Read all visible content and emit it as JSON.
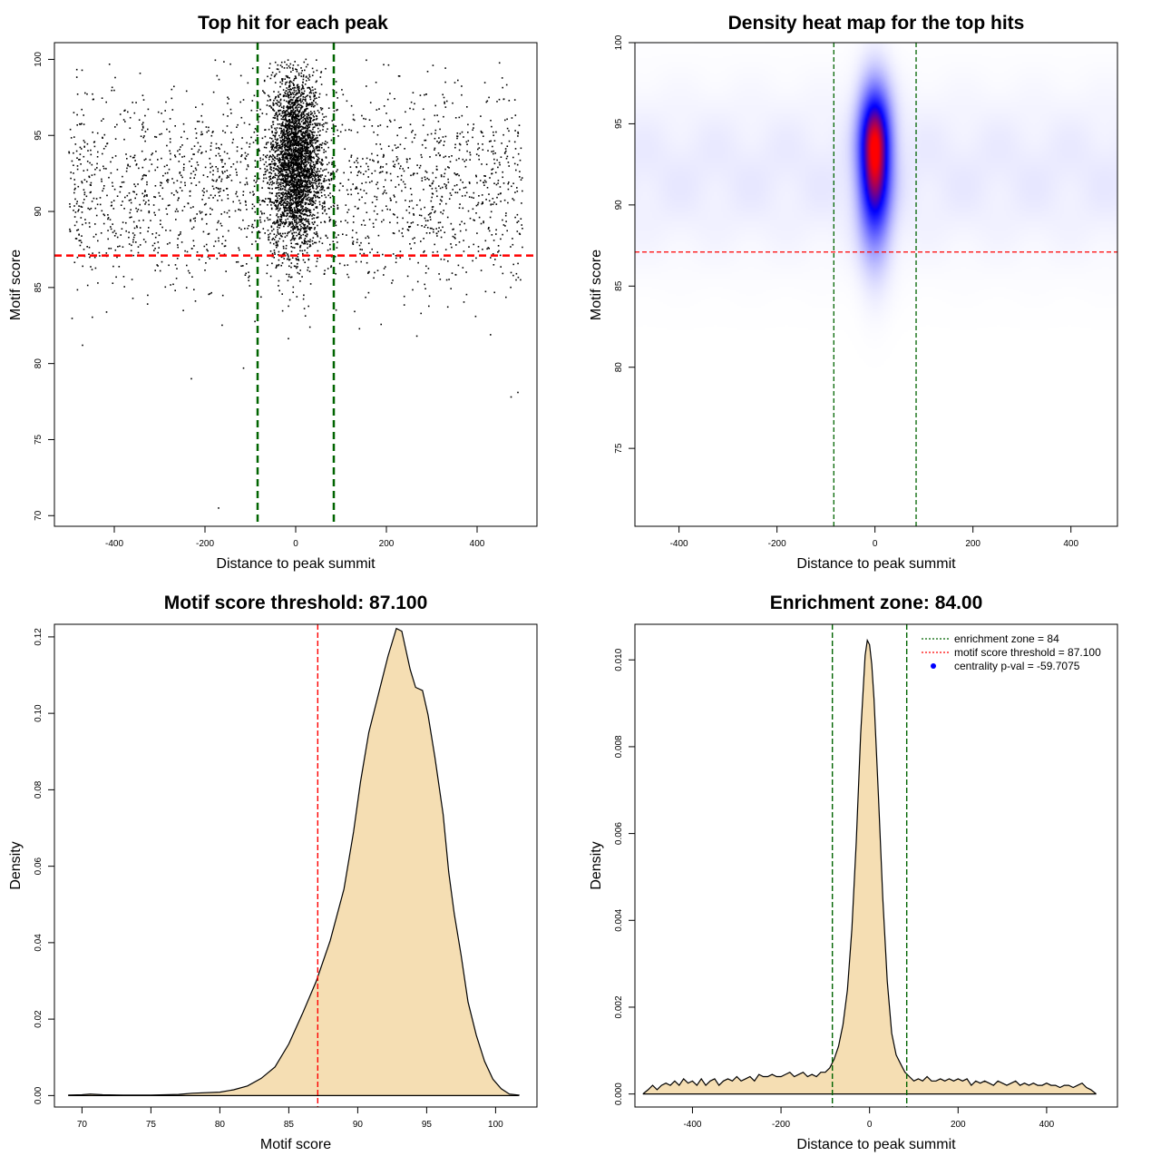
{
  "panels": {
    "scatter": {
      "title": "Top hit for each peak",
      "xlabel": "Distance to peak summit",
      "ylabel": "Motif score"
    },
    "heatmap": {
      "title": "Density heat map for the top hits",
      "xlabel": "Distance to peak summit",
      "ylabel": "Motif score"
    },
    "score_density": {
      "title": "Motif score threshold: 87.100",
      "xlabel": "Motif score",
      "ylabel": "Density"
    },
    "distance_density": {
      "title": "Enrichment zone: 84.00",
      "xlabel": "Distance to peak summit",
      "ylabel": "Density"
    }
  },
  "legend": {
    "items": [
      {
        "label": "enrichment zone = 84",
        "color": "#006400",
        "style": "dotted-line"
      },
      {
        "label": "motif score threshold = 87.100",
        "color": "#ff0000",
        "style": "dotted-line"
      },
      {
        "label": "centrality p-val = -59.7075",
        "color": "#0000ff",
        "style": "point"
      }
    ],
    "position": "top-right"
  },
  "chart_data": [
    {
      "id": "scatter",
      "type": "scatter",
      "title": "Top hit for each peak",
      "xlabel": "Distance to peak summit",
      "ylabel": "Motif score",
      "xlim": [
        -532,
        532
      ],
      "ylim": [
        69.3,
        101.1
      ],
      "xticks": [
        -400,
        -200,
        0,
        200,
        400
      ],
      "yticks": [
        70,
        75,
        80,
        85,
        90,
        95,
        100
      ],
      "point_color": "#000000",
      "vlines": [
        -84,
        84
      ],
      "vline_color": "#006400",
      "hline": 87.1,
      "hline_color": "#ff0000",
      "distribution": {
        "n_total": 5200,
        "central_fraction": 0.6,
        "central_sd_distance": 28,
        "central_mean_score": 93.3,
        "central_sd_score": 2.9,
        "background_distance_range": [
          -500,
          500
        ],
        "background_mean_score": 91.5,
        "background_sd_score": 3.3,
        "sparse_low_points": [
          [
            -170,
            70.5
          ],
          [
            -230,
            79
          ],
          [
            -115,
            79.7
          ],
          [
            475,
            77.8
          ],
          [
            490,
            78.1
          ],
          [
            -470,
            81.2
          ]
        ]
      },
      "grid": false
    },
    {
      "id": "heatmap",
      "type": "heatmap",
      "title": "Density heat map for the top hits",
      "xlabel": "Distance to peak summit",
      "ylabel": "Motif score",
      "xlim": [
        -490,
        495
      ],
      "ylim": [
        70.2,
        100.0
      ],
      "xticks": [
        -400,
        -200,
        0,
        200,
        400
      ],
      "yticks": [
        75,
        80,
        85,
        90,
        95,
        100
      ],
      "colormap": [
        "#ffffff",
        "#0000ff",
        "#ff0000"
      ],
      "peak": {
        "x": 0,
        "y": 93.5,
        "sd_x": 22,
        "sd_y": 2.9,
        "max_density": 1.0
      },
      "background_level": 0.06,
      "vlines": [
        -84,
        84
      ],
      "vline_color": "#006400",
      "hline": 87.1,
      "hline_color": "#ff0000",
      "grid": false
    },
    {
      "id": "score_density",
      "type": "area",
      "title": "Motif score threshold: 87.100",
      "xlabel": "Motif score",
      "ylabel": "Density",
      "xlim": [
        68,
        103
      ],
      "ylim": [
        -0.003,
        0.1233
      ],
      "xticks": [
        70,
        75,
        80,
        85,
        90,
        95,
        100
      ],
      "yticks": [
        0,
        0.02,
        0.04,
        0.06,
        0.08,
        0.1,
        0.12
      ],
      "ytick_labels": [
        "0.00",
        "0.02",
        "0.04",
        "0.06",
        "0.08",
        "0.10",
        "0.12"
      ],
      "fill": "#f5deb3",
      "line": "#000000",
      "x": [
        69.0,
        70.0,
        70.6,
        71.5,
        73,
        75,
        77,
        78,
        80,
        81,
        82,
        83,
        84,
        85,
        86,
        87,
        88,
        89,
        89.7,
        90.2,
        90.8,
        91.5,
        92.2,
        92.8,
        93.2,
        93.8,
        94.2,
        94.7,
        95.1,
        95.6,
        96.2,
        96.6,
        97.0,
        97.5,
        98.0,
        98.6,
        99.2,
        99.8,
        100.4,
        101.0,
        101.7
      ],
      "y": [
        0.0001,
        0.0002,
        0.0004,
        0.0002,
        0.0001,
        0.0001,
        0.0003,
        0.0006,
        0.0009,
        0.0015,
        0.0025,
        0.0045,
        0.0075,
        0.0135,
        0.0215,
        0.03,
        0.0405,
        0.054,
        0.069,
        0.082,
        0.095,
        0.105,
        0.115,
        0.1222,
        0.1215,
        0.1115,
        0.1068,
        0.106,
        0.0996,
        0.0885,
        0.0735,
        0.0585,
        0.0476,
        0.0367,
        0.0245,
        0.0158,
        0.009,
        0.0043,
        0.0018,
        0.0004,
        0.0001
      ],
      "vlines": [
        87.1
      ],
      "vline_color": "#ff0000",
      "grid": false
    },
    {
      "id": "distance_density",
      "type": "area",
      "title": "Enrichment zone: 84.00",
      "xlabel": "Distance to peak summit",
      "ylabel": "Density",
      "xlim": [
        -530,
        560
      ],
      "ylim": [
        -0.0003,
        0.01082
      ],
      "xticks": [
        -400,
        -200,
        0,
        200,
        400
      ],
      "yticks": [
        0,
        0.002,
        0.004,
        0.006,
        0.008,
        0.01
      ],
      "ytick_labels": [
        "0.000",
        "0.002",
        "0.004",
        "0.006",
        "0.008",
        "0.010"
      ],
      "fill": "#f5deb3",
      "line": "#000000",
      "x": [
        -512,
        -500,
        -490,
        -480,
        -470,
        -460,
        -450,
        -440,
        -430,
        -420,
        -410,
        -400,
        -390,
        -380,
        -370,
        -360,
        -350,
        -340,
        -330,
        -320,
        -310,
        -300,
        -290,
        -280,
        -270,
        -260,
        -250,
        -240,
        -230,
        -220,
        -210,
        -200,
        -190,
        -180,
        -170,
        -160,
        -150,
        -140,
        -130,
        -120,
        -110,
        -100,
        -90,
        -80,
        -70,
        -60,
        -50,
        -40,
        -30,
        -20,
        -10,
        -5,
        0,
        5,
        10,
        20,
        30,
        40,
        50,
        60,
        70,
        80,
        90,
        100,
        110,
        120,
        130,
        140,
        150,
        160,
        170,
        180,
        190,
        200,
        210,
        220,
        230,
        240,
        250,
        260,
        270,
        280,
        290,
        300,
        310,
        320,
        330,
        340,
        350,
        360,
        370,
        380,
        390,
        400,
        410,
        420,
        430,
        440,
        450,
        460,
        470,
        480,
        490,
        500,
        512
      ],
      "y": [
        0.0,
        0.0001,
        0.0002,
        0.0001,
        0.0002,
        0.00025,
        0.0002,
        0.0003,
        0.0002,
        0.00035,
        0.00025,
        0.0003,
        0.0002,
        0.00035,
        0.0002,
        0.0003,
        0.00035,
        0.0002,
        0.0003,
        0.00035,
        0.0003,
        0.0004,
        0.0003,
        0.00035,
        0.0004,
        0.0003,
        0.00045,
        0.0004,
        0.0004,
        0.00045,
        0.0004,
        0.0004,
        0.00045,
        0.0005,
        0.0004,
        0.00045,
        0.0005,
        0.0004,
        0.00045,
        0.0004,
        0.0005,
        0.0005,
        0.0006,
        0.0008,
        0.0011,
        0.0016,
        0.0024,
        0.0038,
        0.0058,
        0.0083,
        0.0101,
        0.01045,
        0.01035,
        0.0099,
        0.0091,
        0.0069,
        0.0045,
        0.0026,
        0.0014,
        0.0009,
        0.0007,
        0.0005,
        0.0004,
        0.0003,
        0.00035,
        0.0003,
        0.0004,
        0.0003,
        0.0003,
        0.00035,
        0.0003,
        0.00035,
        0.0003,
        0.00035,
        0.0003,
        0.00035,
        0.0002,
        0.0003,
        0.00025,
        0.0003,
        0.00025,
        0.0002,
        0.0003,
        0.00025,
        0.0002,
        0.00025,
        0.0003,
        0.0002,
        0.00025,
        0.0002,
        0.00025,
        0.0002,
        0.0002,
        0.00025,
        0.0002,
        0.0002,
        0.00015,
        0.0002,
        0.0002,
        0.00015,
        0.0002,
        0.00025,
        0.00015,
        0.0001,
        0.0
      ],
      "vlines": [
        -84,
        84
      ],
      "vline_color": "#006400",
      "legend_position": "top-right",
      "grid": false
    }
  ]
}
